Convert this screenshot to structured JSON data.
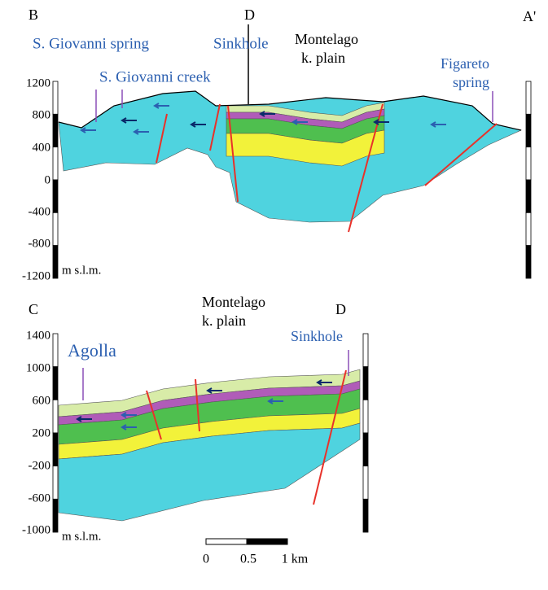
{
  "sections": [
    {
      "corner_labels": [
        "B",
        "D",
        "A'"
      ],
      "labels": {
        "spring": "S. Giovanni spring",
        "creek": "S. Giovanni creek",
        "sinkhole": "Sinkhole",
        "plain": [
          "Montelago",
          "k. plain"
        ],
        "figareto": [
          "Figareto",
          "spring"
        ]
      },
      "axis_labels": [
        "1200",
        "800",
        "400",
        "0",
        "-400",
        "-800",
        "-1200"
      ],
      "unit": "m s.l.m."
    },
    {
      "corner_labels": [
        "C",
        "D"
      ],
      "labels": {
        "agolla": "Agolla",
        "plain": [
          "Montelago",
          "k. plain"
        ],
        "sinkhole": "Sinkhole"
      },
      "axis_labels": [
        "1400",
        "1000",
        "600",
        "200",
        "-200",
        "-600",
        "-1000"
      ],
      "unit": "m s.l.m."
    }
  ],
  "scale_bar": {
    "labels": [
      "0",
      "0.5",
      "1 km"
    ]
  }
}
